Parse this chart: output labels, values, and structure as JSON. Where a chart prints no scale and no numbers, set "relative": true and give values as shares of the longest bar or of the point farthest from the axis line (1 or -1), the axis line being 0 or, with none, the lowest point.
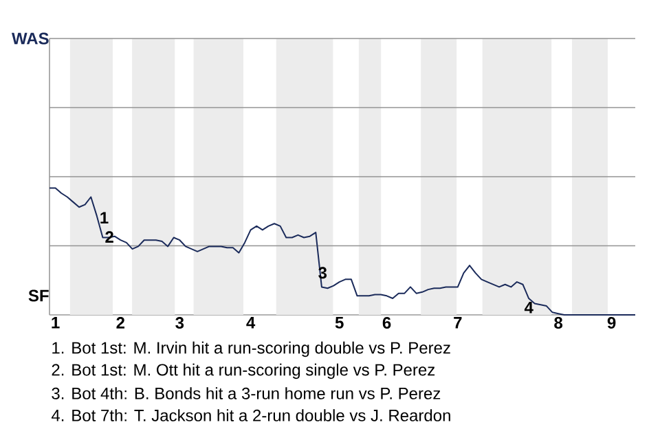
{
  "chart_data": {
    "type": "line",
    "relative": true,
    "categories": [
      null,
      "1",
      null,
      null,
      null,
      null,
      null,
      null,
      null,
      null,
      null,
      null,
      "2",
      null,
      null,
      null,
      null,
      null,
      null,
      null,
      null,
      null,
      "3",
      null,
      null,
      null,
      null,
      null,
      null,
      null,
      null,
      null,
      null,
      null,
      "4",
      null,
      null,
      null,
      null,
      null,
      null,
      null,
      null,
      null,
      null,
      null,
      null,
      null,
      null,
      "5",
      null,
      null,
      null,
      null,
      null,
      null,
      null,
      "6",
      null,
      null,
      null,
      null,
      null,
      null,
      null,
      null,
      null,
      null,
      null,
      "7",
      null,
      null,
      null,
      null,
      null,
      null,
      null,
      null,
      null,
      null,
      null,
      null,
      null,
      null,
      null,
      null,
      "8",
      null,
      null,
      null,
      null,
      null,
      null,
      null,
      null,
      "9",
      null,
      null,
      null,
      null
    ],
    "series": [
      {
        "color": "#1a2a5a",
        "values": [
          1.0,
          1.0,
          0.96,
          0.93,
          0.89,
          0.85,
          0.87,
          0.93,
          0.78,
          0.61,
          0.61,
          0.62,
          0.59,
          0.57,
          0.52,
          0.54,
          0.59,
          0.59,
          0.59,
          0.58,
          0.54,
          0.61,
          0.59,
          0.54,
          0.52,
          0.5,
          0.52,
          0.54,
          0.54,
          0.54,
          0.53,
          0.53,
          0.49,
          0.57,
          0.67,
          0.7,
          0.67,
          0.7,
          0.72,
          0.7,
          0.61,
          0.61,
          0.63,
          0.61,
          0.62,
          0.65,
          0.22,
          0.21,
          0.23,
          0.26,
          0.28,
          0.28,
          0.15,
          0.15,
          0.15,
          0.16,
          0.16,
          0.15,
          0.13,
          0.17,
          0.17,
          0.22,
          0.17,
          0.18,
          0.2,
          0.21,
          0.21,
          0.22,
          0.22,
          0.22,
          0.33,
          0.39,
          0.33,
          0.28,
          0.26,
          0.24,
          0.22,
          0.24,
          0.22,
          0.26,
          0.24,
          0.13,
          0.09,
          0.08,
          0.07,
          0.02,
          0.01,
          0,
          0,
          0,
          0,
          0,
          0,
          0,
          0,
          0,
          0,
          0,
          0,
          0
        ]
      }
    ],
    "marker": "none",
    "line_style": "solid",
    "ref_lines": [
      {
        "axis": "y",
        "value": 0.545,
        "color": "#939393"
      },
      {
        "axis": "y",
        "value": 1.09,
        "color": "#939393"
      },
      {
        "axis": "y",
        "value": 1.635,
        "color": "#939393"
      },
      {
        "axis": "y",
        "value": 2.18,
        "color": "#939393"
      }
    ],
    "annotations": [
      "WAS",
      "SF",
      "1",
      "2",
      "3",
      "4",
      "1. Bot 1st: M. Irvin hit a run-scoring double vs P. Perez",
      "2. Bot 1st: M. Ott hit a run-scoring single vs P. Perez",
      "3. Bot 4th: B. Bonds hit a 3-run home run vs P. Perez",
      "4. Bot 7th: T. Jackson hit a 2-run double vs J. Reardon"
    ]
  }
}
